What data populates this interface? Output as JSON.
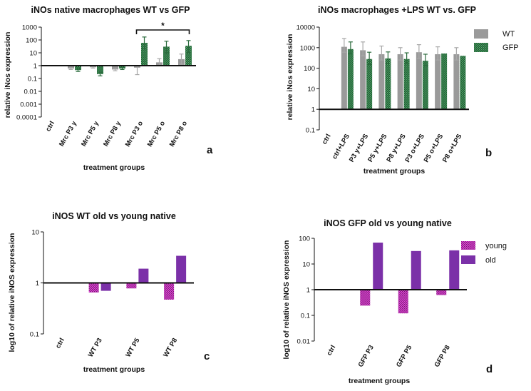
{
  "colors": {
    "wt": "#9a9a9a",
    "gfp": "#1e5c32",
    "gfp_hatch": "#5cae72",
    "young": "#e048d8",
    "young_hatch": "#7a1a72",
    "old": "#7b30a8",
    "axis": "#111111"
  },
  "chart_data": [
    {
      "id": "a",
      "panel_label": "a",
      "type": "bar",
      "scale": "log",
      "title": "iNOs native macrophages WT vs GFP",
      "xlabel": "treatment groups",
      "ylabel": "relative iNos expression",
      "ylim": [
        0.0001,
        1000
      ],
      "baseline": 1,
      "yticks": [
        "1000",
        "100",
        "10",
        "1",
        "0.1",
        "0.01",
        "0.001",
        "0.0001"
      ],
      "categories": [
        "ctrl",
        "Mrc P3 y",
        "Mrc P5 y",
        "Mrc P8 y",
        "Mrc P3 o",
        "Mrc P5 o",
        "Mrc P8 o"
      ],
      "series": [
        {
          "name": "WT",
          "values": [
            null,
            0.6,
            0.75,
            0.5,
            0.7,
            1.8,
            3.2
          ],
          "err_hi": [
            null,
            0.75,
            0.9,
            0.6,
            1.0,
            3.5,
            8
          ],
          "err_lo": [
            null,
            0.5,
            0.65,
            0.4,
            0.2,
            1.0,
            1.3
          ]
        },
        {
          "name": "GFP",
          "values": [
            null,
            0.45,
            0.22,
            0.6,
            60,
            30,
            35
          ],
          "err_hi": [
            null,
            0.55,
            0.3,
            0.75,
            170,
            80,
            90
          ],
          "err_lo": [
            null,
            0.35,
            0.16,
            0.5,
            20,
            10,
            10
          ]
        }
      ],
      "significance": {
        "from": 4,
        "to": 6,
        "label": "*"
      }
    },
    {
      "id": "b",
      "panel_label": "b",
      "type": "bar",
      "scale": "log",
      "title": "iNOs macrophages +LPS WT vs. GFP",
      "xlabel": "treatment groups",
      "ylabel": "relative iNos expression",
      "ylim": [
        0.1,
        10000
      ],
      "baseline": 1,
      "yticks": [
        "10000",
        "1000",
        "100",
        "10",
        "1",
        "0.1"
      ],
      "categories": [
        "ctrl",
        "ctrl+LPS",
        "P3 y+LPS",
        "P5 y+LPS",
        "P8 y+LPS",
        "P3 o+LPS",
        "P5 o+LPS",
        "P8 o+LPS"
      ],
      "series": [
        {
          "name": "WT",
          "values": [
            null,
            1100,
            750,
            480,
            480,
            600,
            480,
            480
          ],
          "err_hi": [
            null,
            2800,
            1900,
            1200,
            1000,
            1400,
            1100,
            1000
          ],
          "err_lo": [
            null,
            600,
            400,
            250,
            250,
            300,
            250,
            250
          ]
        },
        {
          "name": "GFP",
          "values": [
            null,
            850,
            280,
            300,
            280,
            230,
            520,
            400
          ],
          "err_hi": [
            null,
            1900,
            600,
            620,
            560,
            480,
            null,
            null
          ],
          "err_lo": [
            null,
            500,
            150,
            170,
            160,
            130,
            null,
            null
          ]
        }
      ],
      "legend": [
        "WT",
        "GFP"
      ]
    },
    {
      "id": "c",
      "panel_label": "c",
      "type": "bar",
      "scale": "log",
      "title": "iNOS WT old vs young native",
      "xlabel": "treatment groups",
      "ylabel": "log10 of relative iNOS expression",
      "ylim": [
        0.1,
        10
      ],
      "baseline": 1,
      "yticks": [
        "10",
        "1",
        "0.1"
      ],
      "categories": [
        "ctrl",
        "WT P3",
        "WT P5",
        "WT P8"
      ],
      "series": [
        {
          "name": "young",
          "values": [
            null,
            0.65,
            0.78,
            0.47
          ]
        },
        {
          "name": "old",
          "values": [
            null,
            0.7,
            1.9,
            3.4
          ]
        }
      ]
    },
    {
      "id": "d",
      "panel_label": "d",
      "type": "bar",
      "scale": "log",
      "title": "iNOS GFP old vs young native",
      "xlabel": "treatment groups",
      "ylabel": "log10 of relative iNOS expression",
      "ylim": [
        0.01,
        100
      ],
      "baseline": 1,
      "yticks": [
        "100",
        "10",
        "1",
        "0.1",
        "0.01"
      ],
      "categories": [
        "ctrl",
        "GFP P3",
        "GFP P5",
        "GFP P8"
      ],
      "series": [
        {
          "name": "young",
          "values": [
            null,
            0.24,
            0.12,
            0.62
          ]
        },
        {
          "name": "old",
          "values": [
            null,
            68,
            32,
            34
          ]
        }
      ],
      "legend": [
        "young",
        "old"
      ]
    }
  ]
}
